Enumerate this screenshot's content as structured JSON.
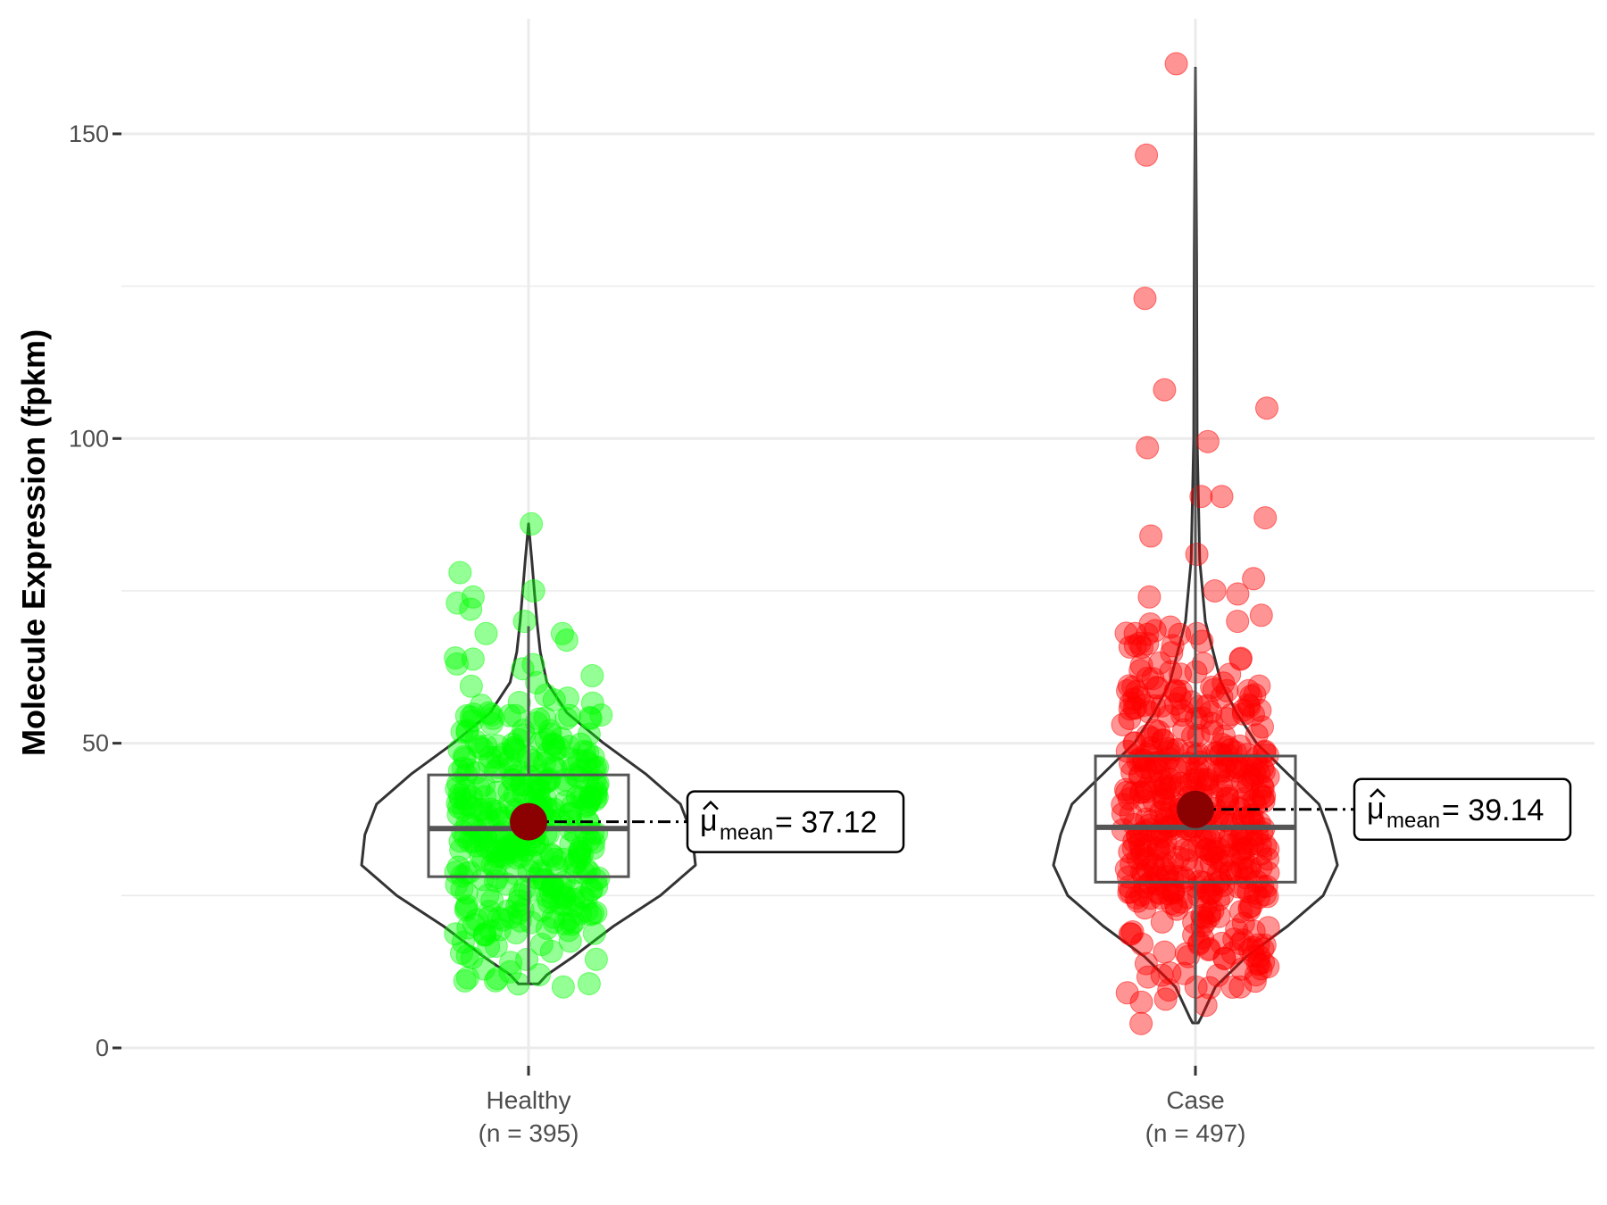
{
  "chart_data": {
    "type": "violin",
    "title": "",
    "xlabel": "",
    "ylabel": "Molecule Expression (fpkm)",
    "ylim": [
      -4,
      167
    ],
    "yticks": [
      0,
      50,
      100,
      150
    ],
    "ytick_labels": [
      "0",
      "50",
      "100",
      "150"
    ],
    "minor_gridlines": [
      25,
      75,
      125
    ],
    "grid": true,
    "legend": "none",
    "mean_point_color": "#8B0000",
    "groups": [
      {
        "name": "Healthy",
        "n_label": "(n = 395)",
        "n": 395,
        "color": "#00FF00",
        "mean": 37.12,
        "mean_label": "= 37.12",
        "median": 36.0,
        "q1": 28.1,
        "q3": 44.8,
        "whisker_low": 10.5,
        "whisker_high": 69.2,
        "violin_min": 10.5,
        "violin_max": 86,
        "violin_profile": [
          [
            10.5,
            0.06
          ],
          [
            12,
            0.11
          ],
          [
            15,
            0.27
          ],
          [
            20,
            0.51
          ],
          [
            25,
            0.79
          ],
          [
            30,
            1.0
          ],
          [
            35,
            0.98
          ],
          [
            40,
            0.91
          ],
          [
            45,
            0.7
          ],
          [
            50,
            0.45
          ],
          [
            55,
            0.23
          ],
          [
            60,
            0.11
          ],
          [
            65,
            0.07
          ],
          [
            70,
            0.05
          ],
          [
            75,
            0.035
          ],
          [
            80,
            0.02
          ],
          [
            86,
            0.0
          ]
        ],
        "high_points": [
          86,
          78,
          75,
          74,
          73,
          72,
          70,
          68,
          68,
          64,
          63
        ],
        "low_points": [
          11,
          11.5,
          12,
          10.5,
          10
        ]
      },
      {
        "name": "Case",
        "n_label": "(n = 497)",
        "n": 497,
        "color": "#FF0000",
        "mean": 39.14,
        "mean_label": "= 39.14",
        "median": 36.2,
        "q1": 27.2,
        "q3": 47.9,
        "whisker_low": 4.1,
        "whisker_high": 160.8,
        "violin_min": 4.1,
        "violin_max": 160.8,
        "violin_profile": [
          [
            4.1,
            0.02
          ],
          [
            5,
            0.04
          ],
          [
            10,
            0.14
          ],
          [
            15,
            0.36
          ],
          [
            20,
            0.65
          ],
          [
            25,
            0.9
          ],
          [
            30,
            1.0
          ],
          [
            35,
            0.95
          ],
          [
            40,
            0.87
          ],
          [
            45,
            0.65
          ],
          [
            50,
            0.43
          ],
          [
            55,
            0.29
          ],
          [
            60,
            0.18
          ],
          [
            70,
            0.07
          ],
          [
            80,
            0.03
          ],
          [
            100,
            0.012
          ],
          [
            130,
            0.008
          ],
          [
            160.8,
            0.0
          ]
        ],
        "high_points": [
          161.5,
          146.5,
          123,
          108,
          105,
          99.5,
          98.5,
          90.5,
          90.5,
          87,
          84,
          81,
          77,
          75,
          74.5,
          74,
          71,
          70,
          68,
          68,
          66,
          66
        ],
        "low_points": [
          4,
          7,
          7.5,
          8,
          9.5,
          10,
          10,
          12
        ]
      }
    ]
  }
}
